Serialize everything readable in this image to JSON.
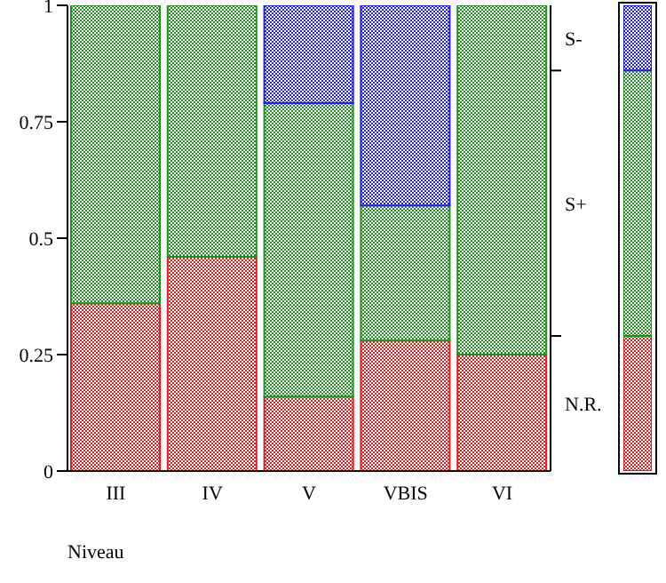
{
  "chart_data": [
    {
      "type": "bar",
      "xlabel": "Niveau",
      "categories": [
        "III",
        "IV",
        "V",
        "VBIS",
        "VI"
      ],
      "stacked": true,
      "series": [
        {
          "color": "#e02020",
          "values": [
            0.36,
            0.46,
            0.16,
            0.28,
            0.25
          ]
        },
        {
          "color": "#209020",
          "values": [
            0.64,
            0.54,
            0.63,
            0.29,
            0.75
          ]
        },
        {
          "color": "#2020e0",
          "values": [
            0,
            0,
            0.21,
            0.43,
            0
          ]
        }
      ],
      "ylim": [
        0,
        1
      ],
      "yticks": [
        0,
        0.25,
        0.5,
        0.75,
        1
      ],
      "grid": false,
      "legend": false
    },
    {
      "type": "bar",
      "categories": [
        null
      ],
      "stacked": true,
      "ylim": [
        0,
        1
      ],
      "tick_labels": false,
      "series": [
        {
          "name": "N.R.",
          "color": "#e02020",
          "values": [
            0.29
          ]
        },
        {
          "name": "S+",
          "color": "#209020",
          "values": [
            0.57
          ]
        },
        {
          "name": "S-",
          "color": "#2020e0",
          "values": [
            0.14
          ]
        }
      ]
    }
  ]
}
